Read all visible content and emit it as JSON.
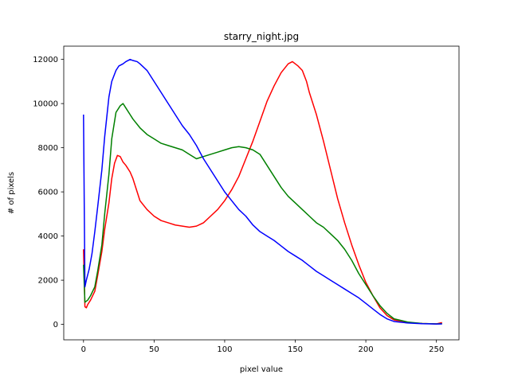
{
  "chart_data": {
    "type": "line",
    "title": "starry_night.jpg",
    "xlabel": "pixel value",
    "ylabel": "# of pixels",
    "xlim": [
      -14,
      266
    ],
    "ylim": [
      -700,
      12600
    ],
    "xticks": [
      0,
      50,
      100,
      150,
      200,
      250
    ],
    "yticks": [
      0,
      2000,
      4000,
      6000,
      8000,
      10000,
      12000
    ],
    "grid": false,
    "legend": "none",
    "series": [
      {
        "color": "#ff0000",
        "points": [
          [
            0,
            3400
          ],
          [
            1,
            800
          ],
          [
            2,
            750
          ],
          [
            3,
            900
          ],
          [
            5,
            1100
          ],
          [
            8,
            1500
          ],
          [
            10,
            2200
          ],
          [
            13,
            3300
          ],
          [
            15,
            4300
          ],
          [
            18,
            5500
          ],
          [
            20,
            6600
          ],
          [
            22,
            7300
          ],
          [
            24,
            7650
          ],
          [
            26,
            7600
          ],
          [
            28,
            7350
          ],
          [
            30,
            7200
          ],
          [
            33,
            6900
          ],
          [
            35,
            6600
          ],
          [
            38,
            6000
          ],
          [
            40,
            5600
          ],
          [
            45,
            5200
          ],
          [
            50,
            4900
          ],
          [
            55,
            4700
          ],
          [
            60,
            4600
          ],
          [
            65,
            4500
          ],
          [
            70,
            4450
          ],
          [
            75,
            4400
          ],
          [
            80,
            4450
          ],
          [
            85,
            4600
          ],
          [
            90,
            4900
          ],
          [
            95,
            5200
          ],
          [
            100,
            5600
          ],
          [
            105,
            6100
          ],
          [
            110,
            6700
          ],
          [
            115,
            7500
          ],
          [
            120,
            8300
          ],
          [
            125,
            9200
          ],
          [
            130,
            10100
          ],
          [
            135,
            10800
          ],
          [
            140,
            11400
          ],
          [
            145,
            11800
          ],
          [
            148,
            11900
          ],
          [
            152,
            11700
          ],
          [
            155,
            11500
          ],
          [
            158,
            11000
          ],
          [
            160,
            10500
          ],
          [
            165,
            9500
          ],
          [
            170,
            8300
          ],
          [
            175,
            7000
          ],
          [
            180,
            5700
          ],
          [
            185,
            4600
          ],
          [
            190,
            3600
          ],
          [
            195,
            2700
          ],
          [
            200,
            1900
          ],
          [
            205,
            1300
          ],
          [
            210,
            750
          ],
          [
            215,
            400
          ],
          [
            220,
            200
          ],
          [
            230,
            80
          ],
          [
            240,
            40
          ],
          [
            250,
            20
          ],
          [
            254,
            80
          ]
        ]
      },
      {
        "color": "#008000",
        "points": [
          [
            0,
            2700
          ],
          [
            1,
            1000
          ],
          [
            3,
            1100
          ],
          [
            5,
            1300
          ],
          [
            8,
            1700
          ],
          [
            10,
            2400
          ],
          [
            13,
            3600
          ],
          [
            15,
            5000
          ],
          [
            18,
            6800
          ],
          [
            20,
            8400
          ],
          [
            23,
            9600
          ],
          [
            26,
            9900
          ],
          [
            28,
            10000
          ],
          [
            30,
            9800
          ],
          [
            33,
            9500
          ],
          [
            35,
            9300
          ],
          [
            40,
            8900
          ],
          [
            45,
            8600
          ],
          [
            50,
            8400
          ],
          [
            55,
            8200
          ],
          [
            60,
            8100
          ],
          [
            65,
            8000
          ],
          [
            70,
            7900
          ],
          [
            75,
            7700
          ],
          [
            80,
            7500
          ],
          [
            85,
            7600
          ],
          [
            90,
            7700
          ],
          [
            95,
            7800
          ],
          [
            100,
            7900
          ],
          [
            105,
            8000
          ],
          [
            110,
            8050
          ],
          [
            115,
            8000
          ],
          [
            120,
            7900
          ],
          [
            125,
            7700
          ],
          [
            130,
            7200
          ],
          [
            135,
            6700
          ],
          [
            140,
            6200
          ],
          [
            145,
            5800
          ],
          [
            150,
            5500
          ],
          [
            155,
            5200
          ],
          [
            160,
            4900
          ],
          [
            165,
            4600
          ],
          [
            170,
            4400
          ],
          [
            175,
            4100
          ],
          [
            180,
            3800
          ],
          [
            185,
            3400
          ],
          [
            190,
            2900
          ],
          [
            195,
            2300
          ],
          [
            200,
            1800
          ],
          [
            205,
            1300
          ],
          [
            210,
            850
          ],
          [
            215,
            500
          ],
          [
            220,
            250
          ],
          [
            230,
            100
          ],
          [
            240,
            40
          ],
          [
            250,
            20
          ],
          [
            254,
            30
          ]
        ]
      },
      {
        "color": "#0000ff",
        "points": [
          [
            0,
            9500
          ],
          [
            1,
            1700
          ],
          [
            2,
            2000
          ],
          [
            4,
            2500
          ],
          [
            6,
            3200
          ],
          [
            8,
            4200
          ],
          [
            10,
            5300
          ],
          [
            13,
            7000
          ],
          [
            15,
            8500
          ],
          [
            18,
            10300
          ],
          [
            20,
            11000
          ],
          [
            23,
            11500
          ],
          [
            25,
            11700
          ],
          [
            28,
            11800
          ],
          [
            30,
            11900
          ],
          [
            33,
            12000
          ],
          [
            35,
            11950
          ],
          [
            38,
            11900
          ],
          [
            40,
            11800
          ],
          [
            45,
            11500
          ],
          [
            50,
            11000
          ],
          [
            55,
            10500
          ],
          [
            60,
            10000
          ],
          [
            65,
            9500
          ],
          [
            70,
            9000
          ],
          [
            75,
            8600
          ],
          [
            80,
            8100
          ],
          [
            85,
            7500
          ],
          [
            90,
            7000
          ],
          [
            95,
            6500
          ],
          [
            100,
            6000
          ],
          [
            105,
            5600
          ],
          [
            110,
            5200
          ],
          [
            115,
            4900
          ],
          [
            120,
            4500
          ],
          [
            125,
            4200
          ],
          [
            130,
            4000
          ],
          [
            135,
            3800
          ],
          [
            140,
            3550
          ],
          [
            145,
            3300
          ],
          [
            150,
            3100
          ],
          [
            155,
            2900
          ],
          [
            160,
            2650
          ],
          [
            165,
            2400
          ],
          [
            170,
            2200
          ],
          [
            175,
            2000
          ],
          [
            180,
            1800
          ],
          [
            185,
            1600
          ],
          [
            190,
            1400
          ],
          [
            195,
            1200
          ],
          [
            200,
            950
          ],
          [
            205,
            700
          ],
          [
            210,
            450
          ],
          [
            215,
            250
          ],
          [
            220,
            130
          ],
          [
            230,
            60
          ],
          [
            240,
            30
          ],
          [
            250,
            15
          ],
          [
            254,
            20
          ]
        ]
      }
    ]
  }
}
